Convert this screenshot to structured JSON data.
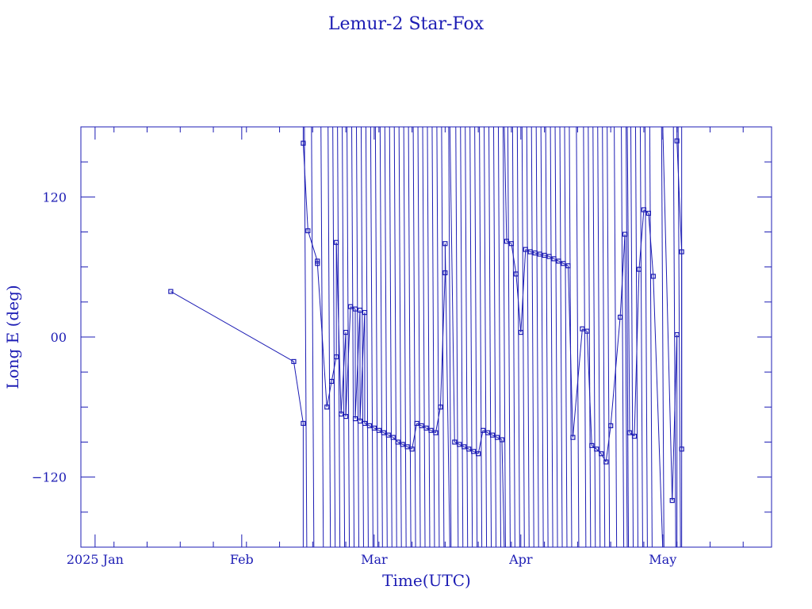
{
  "chart_data": {
    "type": "line",
    "title": "Lemur-2 Star-Fox",
    "xlabel": "Time(UTC)",
    "ylabel": "Long E (deg)",
    "x_tick_labels": [
      {
        "date": "2025-01-01",
        "label": "2025 Jan"
      },
      {
        "date": "2025-02-01",
        "label": "Feb"
      },
      {
        "date": "2025-03-01",
        "label": "Mar"
      },
      {
        "date": "2025-04-01",
        "label": "Apr"
      },
      {
        "date": "2025-05-01",
        "label": "May"
      }
    ],
    "y_tick_labels": [
      {
        "value": 120,
        "label": "120"
      },
      {
        "value": 0,
        "label": "00"
      },
      {
        "value": -120,
        "label": "−120"
      }
    ],
    "xlim": [
      "2024-12-29",
      "2025-05-24"
    ],
    "ylim": [
      -180,
      180
    ],
    "color": "#1c1cb4",
    "marker": "square",
    "series": [
      {
        "points": [
          [
            "2025-01-17",
            39
          ],
          [
            "2025-02-12",
            -21
          ],
          [
            "2025-02-14",
            -74
          ],
          [
            "2025-02-14",
            166
          ],
          [
            "2025-02-15",
            91
          ],
          [
            "2025-02-17",
            65
          ],
          [
            "2025-02-17",
            63
          ],
          [
            "2025-02-19",
            -60
          ],
          [
            "2025-02-20",
            -38
          ],
          [
            "2025-02-21",
            -17
          ],
          [
            "2025-02-21",
            81
          ],
          [
            "2025-02-22",
            -66
          ],
          [
            "2025-02-23",
            4
          ],
          [
            "2025-02-23",
            -68
          ],
          [
            "2025-02-24",
            26
          ],
          [
            "2025-02-25",
            24
          ],
          [
            "2025-02-25",
            -70
          ],
          [
            "2025-02-26",
            23
          ],
          [
            "2025-02-26",
            -72
          ],
          [
            "2025-02-27",
            21
          ],
          [
            "2025-02-27",
            -74
          ],
          [
            "2025-02-28",
            -76
          ],
          [
            "2025-03-01",
            -78
          ],
          [
            "2025-03-02",
            -80
          ],
          [
            "2025-03-03",
            -82
          ],
          [
            "2025-03-04",
            -84
          ],
          [
            "2025-03-05",
            -86
          ],
          [
            "2025-03-06",
            -90
          ],
          [
            "2025-03-07",
            -92
          ],
          [
            "2025-03-08",
            -94
          ],
          [
            "2025-03-09",
            -96
          ],
          [
            "2025-03-10",
            -74
          ],
          [
            "2025-03-11",
            -76
          ],
          [
            "2025-03-12",
            -78
          ],
          [
            "2025-03-13",
            -80
          ],
          [
            "2025-03-14",
            -82
          ],
          [
            "2025-03-15",
            -60
          ],
          [
            "2025-03-16",
            55
          ],
          [
            "2025-03-16",
            80
          ],
          [
            "2025-03-18",
            -90
          ],
          [
            "2025-03-19",
            -92
          ],
          [
            "2025-03-20",
            -94
          ],
          [
            "2025-03-21",
            -96
          ],
          [
            "2025-03-22",
            -98
          ],
          [
            "2025-03-23",
            -100
          ],
          [
            "2025-03-24",
            -80
          ],
          [
            "2025-03-25",
            -82
          ],
          [
            "2025-03-26",
            -84
          ],
          [
            "2025-03-27",
            -86
          ],
          [
            "2025-03-28",
            -88
          ],
          [
            "2025-03-29",
            82
          ],
          [
            "2025-03-30",
            80
          ],
          [
            "2025-03-31",
            54
          ],
          [
            "2025-04-01",
            4
          ],
          [
            "2025-04-02",
            75
          ],
          [
            "2025-04-03",
            73
          ],
          [
            "2025-04-04",
            72
          ],
          [
            "2025-04-05",
            71
          ],
          [
            "2025-04-06",
            70
          ],
          [
            "2025-04-07",
            69
          ],
          [
            "2025-04-08",
            67
          ],
          [
            "2025-04-09",
            65
          ],
          [
            "2025-04-10",
            63
          ],
          [
            "2025-04-11",
            61
          ],
          [
            "2025-04-12",
            -86
          ],
          [
            "2025-04-14",
            7
          ],
          [
            "2025-04-15",
            5
          ],
          [
            "2025-04-16",
            -93
          ],
          [
            "2025-04-17",
            -96
          ],
          [
            "2025-04-18",
            -100
          ],
          [
            "2025-04-19",
            -107
          ],
          [
            "2025-04-20",
            -76
          ],
          [
            "2025-04-22",
            17
          ],
          [
            "2025-04-23",
            88
          ],
          [
            "2025-04-24",
            -82
          ],
          [
            "2025-04-25",
            -85
          ],
          [
            "2025-04-26",
            58
          ],
          [
            "2025-04-27",
            109
          ],
          [
            "2025-04-28",
            106
          ],
          [
            "2025-04-29",
            52
          ],
          [
            "2025-05-03",
            -140
          ],
          [
            "2025-05-04",
            2
          ],
          [
            "2025-05-04",
            168
          ],
          [
            "2025-05-05",
            73
          ],
          [
            "2025-05-05",
            -96
          ]
        ]
      }
    ]
  }
}
